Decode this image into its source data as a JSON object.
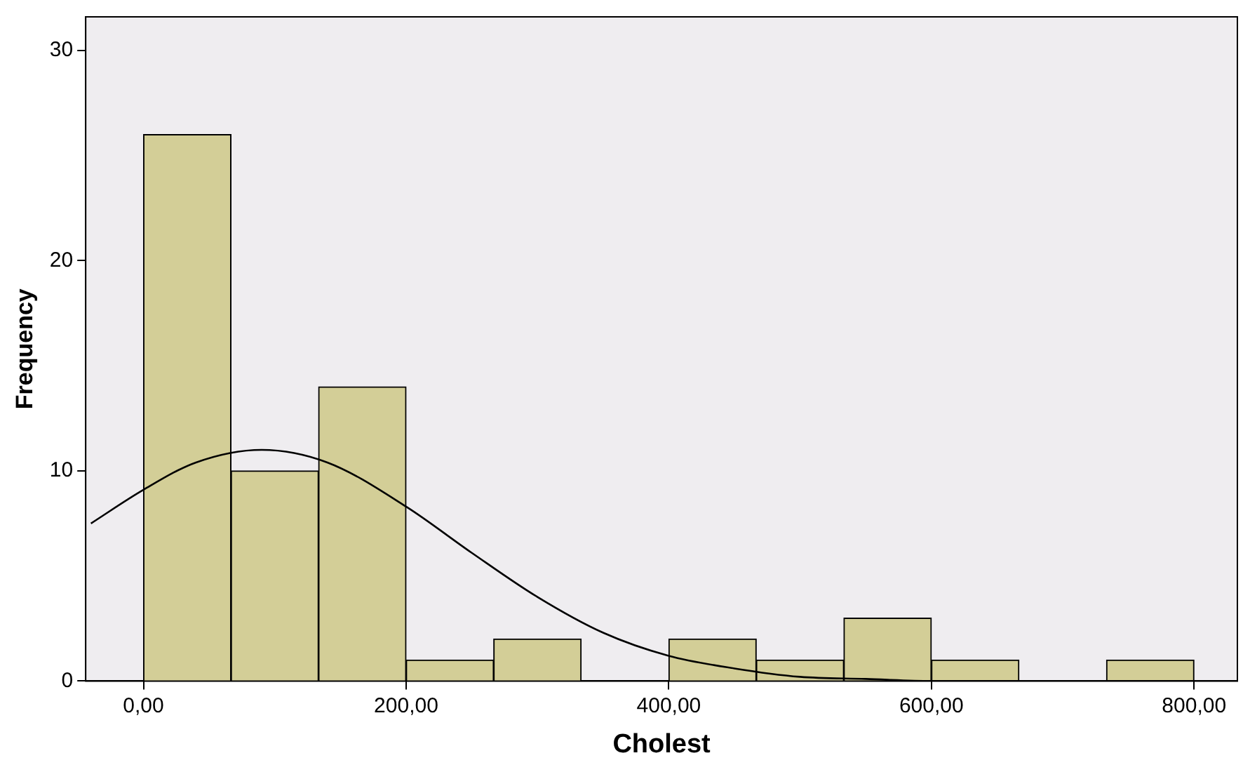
{
  "chart_data": {
    "type": "histogram",
    "xlabel": "Cholest",
    "ylabel": "Frequency",
    "bins": [
      0,
      66.7,
      133.3,
      200,
      266.7,
      333.3,
      400,
      466.7,
      533.3,
      600,
      666.7,
      733.3,
      800
    ],
    "values": [
      26,
      10,
      14,
      1,
      2,
      0,
      2,
      1,
      3,
      1,
      0,
      1
    ],
    "color": "#d3ce97",
    "series": [
      {
        "type": "line",
        "color": "#000000",
        "x": [
          -40,
          0,
          40,
          90,
          140,
          200,
          250,
          300,
          350,
          400,
          450,
          500,
          550,
          600,
          700,
          830
        ],
        "values": [
          7.5,
          9.1,
          10.4,
          11,
          10.4,
          8.3,
          6.1,
          4,
          2.3,
          1.2,
          0.6,
          0.2,
          0.1,
          0,
          0,
          0
        ]
      }
    ],
    "xlim": [
      -44,
      833
    ],
    "xticks": [
      {
        "value": 0,
        "label": "0,00"
      },
      {
        "value": 200,
        "label": "200,00"
      },
      {
        "value": 400,
        "label": "400,00"
      },
      {
        "value": 600,
        "label": "600,00"
      },
      {
        "value": 800,
        "label": "800,00"
      }
    ],
    "ylim": [
      0,
      31.6
    ],
    "yticks": [
      0,
      10,
      20,
      30
    ],
    "grid": false,
    "legend": false
  }
}
